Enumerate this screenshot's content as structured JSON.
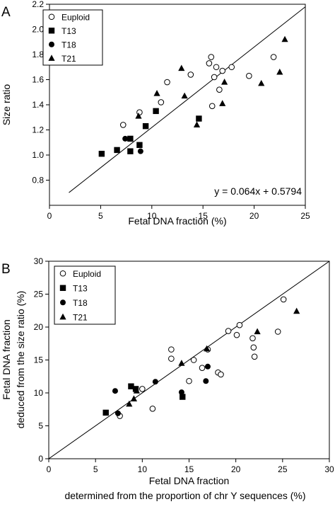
{
  "chart_data": [
    {
      "type": "scatter",
      "panel_label": "A",
      "xlabel": "Fetal DNA fraction (%)",
      "ylabel": "Size ratio",
      "xlim": [
        0,
        25
      ],
      "ylim": [
        0.6,
        2.2
      ],
      "xticks": [
        0,
        5,
        10,
        15,
        20,
        25
      ],
      "yticks": [
        0.8,
        1.0,
        1.2,
        1.4,
        1.6,
        1.8,
        2.0,
        2.2
      ],
      "ytick_decimals": 1,
      "legend": "top-left",
      "annotation": "y = 0.064x + 0.5794",
      "line": {
        "slope": 0.064,
        "intercept": 0.5794,
        "x_range": [
          1.9,
          25
        ]
      },
      "series": [
        {
          "name": "Euploid",
          "marker": "circle-open",
          "points": [
            [
              7.2,
              1.24
            ],
            [
              8.8,
              1.34
            ],
            [
              10.9,
              1.42
            ],
            [
              11.5,
              1.58
            ],
            [
              13.8,
              1.64
            ],
            [
              15.6,
              1.73
            ],
            [
              15.8,
              1.78
            ],
            [
              16.1,
              1.62
            ],
            [
              15.9,
              1.39
            ],
            [
              16.3,
              1.7
            ],
            [
              16.6,
              1.52
            ],
            [
              16.9,
              1.67
            ],
            [
              17.8,
              1.7
            ],
            [
              19.5,
              1.63
            ],
            [
              21.9,
              1.78
            ]
          ]
        },
        {
          "name": "T13",
          "marker": "square",
          "points": [
            [
              5.1,
              1.01
            ],
            [
              6.6,
              1.04
            ],
            [
              7.9,
              1.13
            ],
            [
              7.9,
              1.03
            ],
            [
              8.8,
              1.08
            ],
            [
              9.4,
              1.23
            ],
            [
              10.4,
              1.35
            ],
            [
              14.6,
              1.29
            ]
          ]
        },
        {
          "name": "T18",
          "marker": "circle",
          "points": [
            [
              7.4,
              1.13
            ],
            [
              8.9,
              1.03
            ]
          ]
        },
        {
          "name": "T21",
          "marker": "triangle",
          "points": [
            [
              8.7,
              1.31
            ],
            [
              10.5,
              1.49
            ],
            [
              12.9,
              1.69
            ],
            [
              13.2,
              1.47
            ],
            [
              14.4,
              1.24
            ],
            [
              16.9,
              1.41
            ],
            [
              17.1,
              1.58
            ],
            [
              20.7,
              1.57
            ],
            [
              22.5,
              1.66
            ],
            [
              23.0,
              1.92
            ]
          ]
        }
      ]
    },
    {
      "type": "scatter",
      "panel_label": "B",
      "xlabel": "Fetal DNA fraction",
      "xlabel2": "determined from the proportion of chr Y sequences (%)",
      "ylabel": "Fetal DNA fraction",
      "ylabel2": "deduced from the size ratio (%)",
      "xlim": [
        0,
        30
      ],
      "ylim": [
        0,
        30
      ],
      "xticks": [
        0,
        5,
        10,
        15,
        20,
        25,
        30
      ],
      "yticks": [
        0,
        5,
        10,
        15,
        20,
        25,
        30
      ],
      "ytick_decimals": 0,
      "legend": "top-left",
      "line": {
        "slope": 1,
        "intercept": 0,
        "x_range": [
          0,
          30
        ]
      },
      "series": [
        {
          "name": "Euploid",
          "marker": "circle-open",
          "points": [
            [
              7.6,
              6.5
            ],
            [
              10.0,
              10.6
            ],
            [
              11.1,
              7.6
            ],
            [
              13.1,
              16.6
            ],
            [
              13.1,
              15.2
            ],
            [
              15.0,
              11.8
            ],
            [
              15.5,
              15.0
            ],
            [
              16.4,
              13.8
            ],
            [
              17.0,
              16.6
            ],
            [
              18.1,
              13.1
            ],
            [
              18.4,
              12.8
            ],
            [
              19.2,
              19.4
            ],
            [
              20.1,
              18.8
            ],
            [
              20.4,
              20.3
            ],
            [
              21.8,
              18.3
            ],
            [
              21.9,
              16.9
            ],
            [
              22.0,
              15.5
            ],
            [
              24.5,
              19.3
            ],
            [
              25.1,
              24.2
            ]
          ]
        },
        {
          "name": "T13",
          "marker": "square",
          "points": [
            [
              6.1,
              7.0
            ],
            [
              8.8,
              11.0
            ],
            [
              9.3,
              10.6
            ],
            [
              14.3,
              9.4
            ]
          ]
        },
        {
          "name": "T18",
          "marker": "circle",
          "points": [
            [
              7.1,
              10.3
            ],
            [
              7.4,
              6.9
            ],
            [
              11.4,
              11.7
            ],
            [
              14.2,
              10.1
            ],
            [
              16.8,
              11.8
            ],
            [
              17.0,
              14.0
            ]
          ]
        },
        {
          "name": "T21",
          "marker": "triangle",
          "points": [
            [
              8.6,
              8.3
            ],
            [
              9.1,
              9.1
            ],
            [
              9.4,
              10.3
            ],
            [
              14.2,
              14.5
            ],
            [
              16.9,
              16.7
            ],
            [
              22.3,
              19.3
            ],
            [
              26.5,
              22.4
            ]
          ]
        }
      ]
    }
  ]
}
